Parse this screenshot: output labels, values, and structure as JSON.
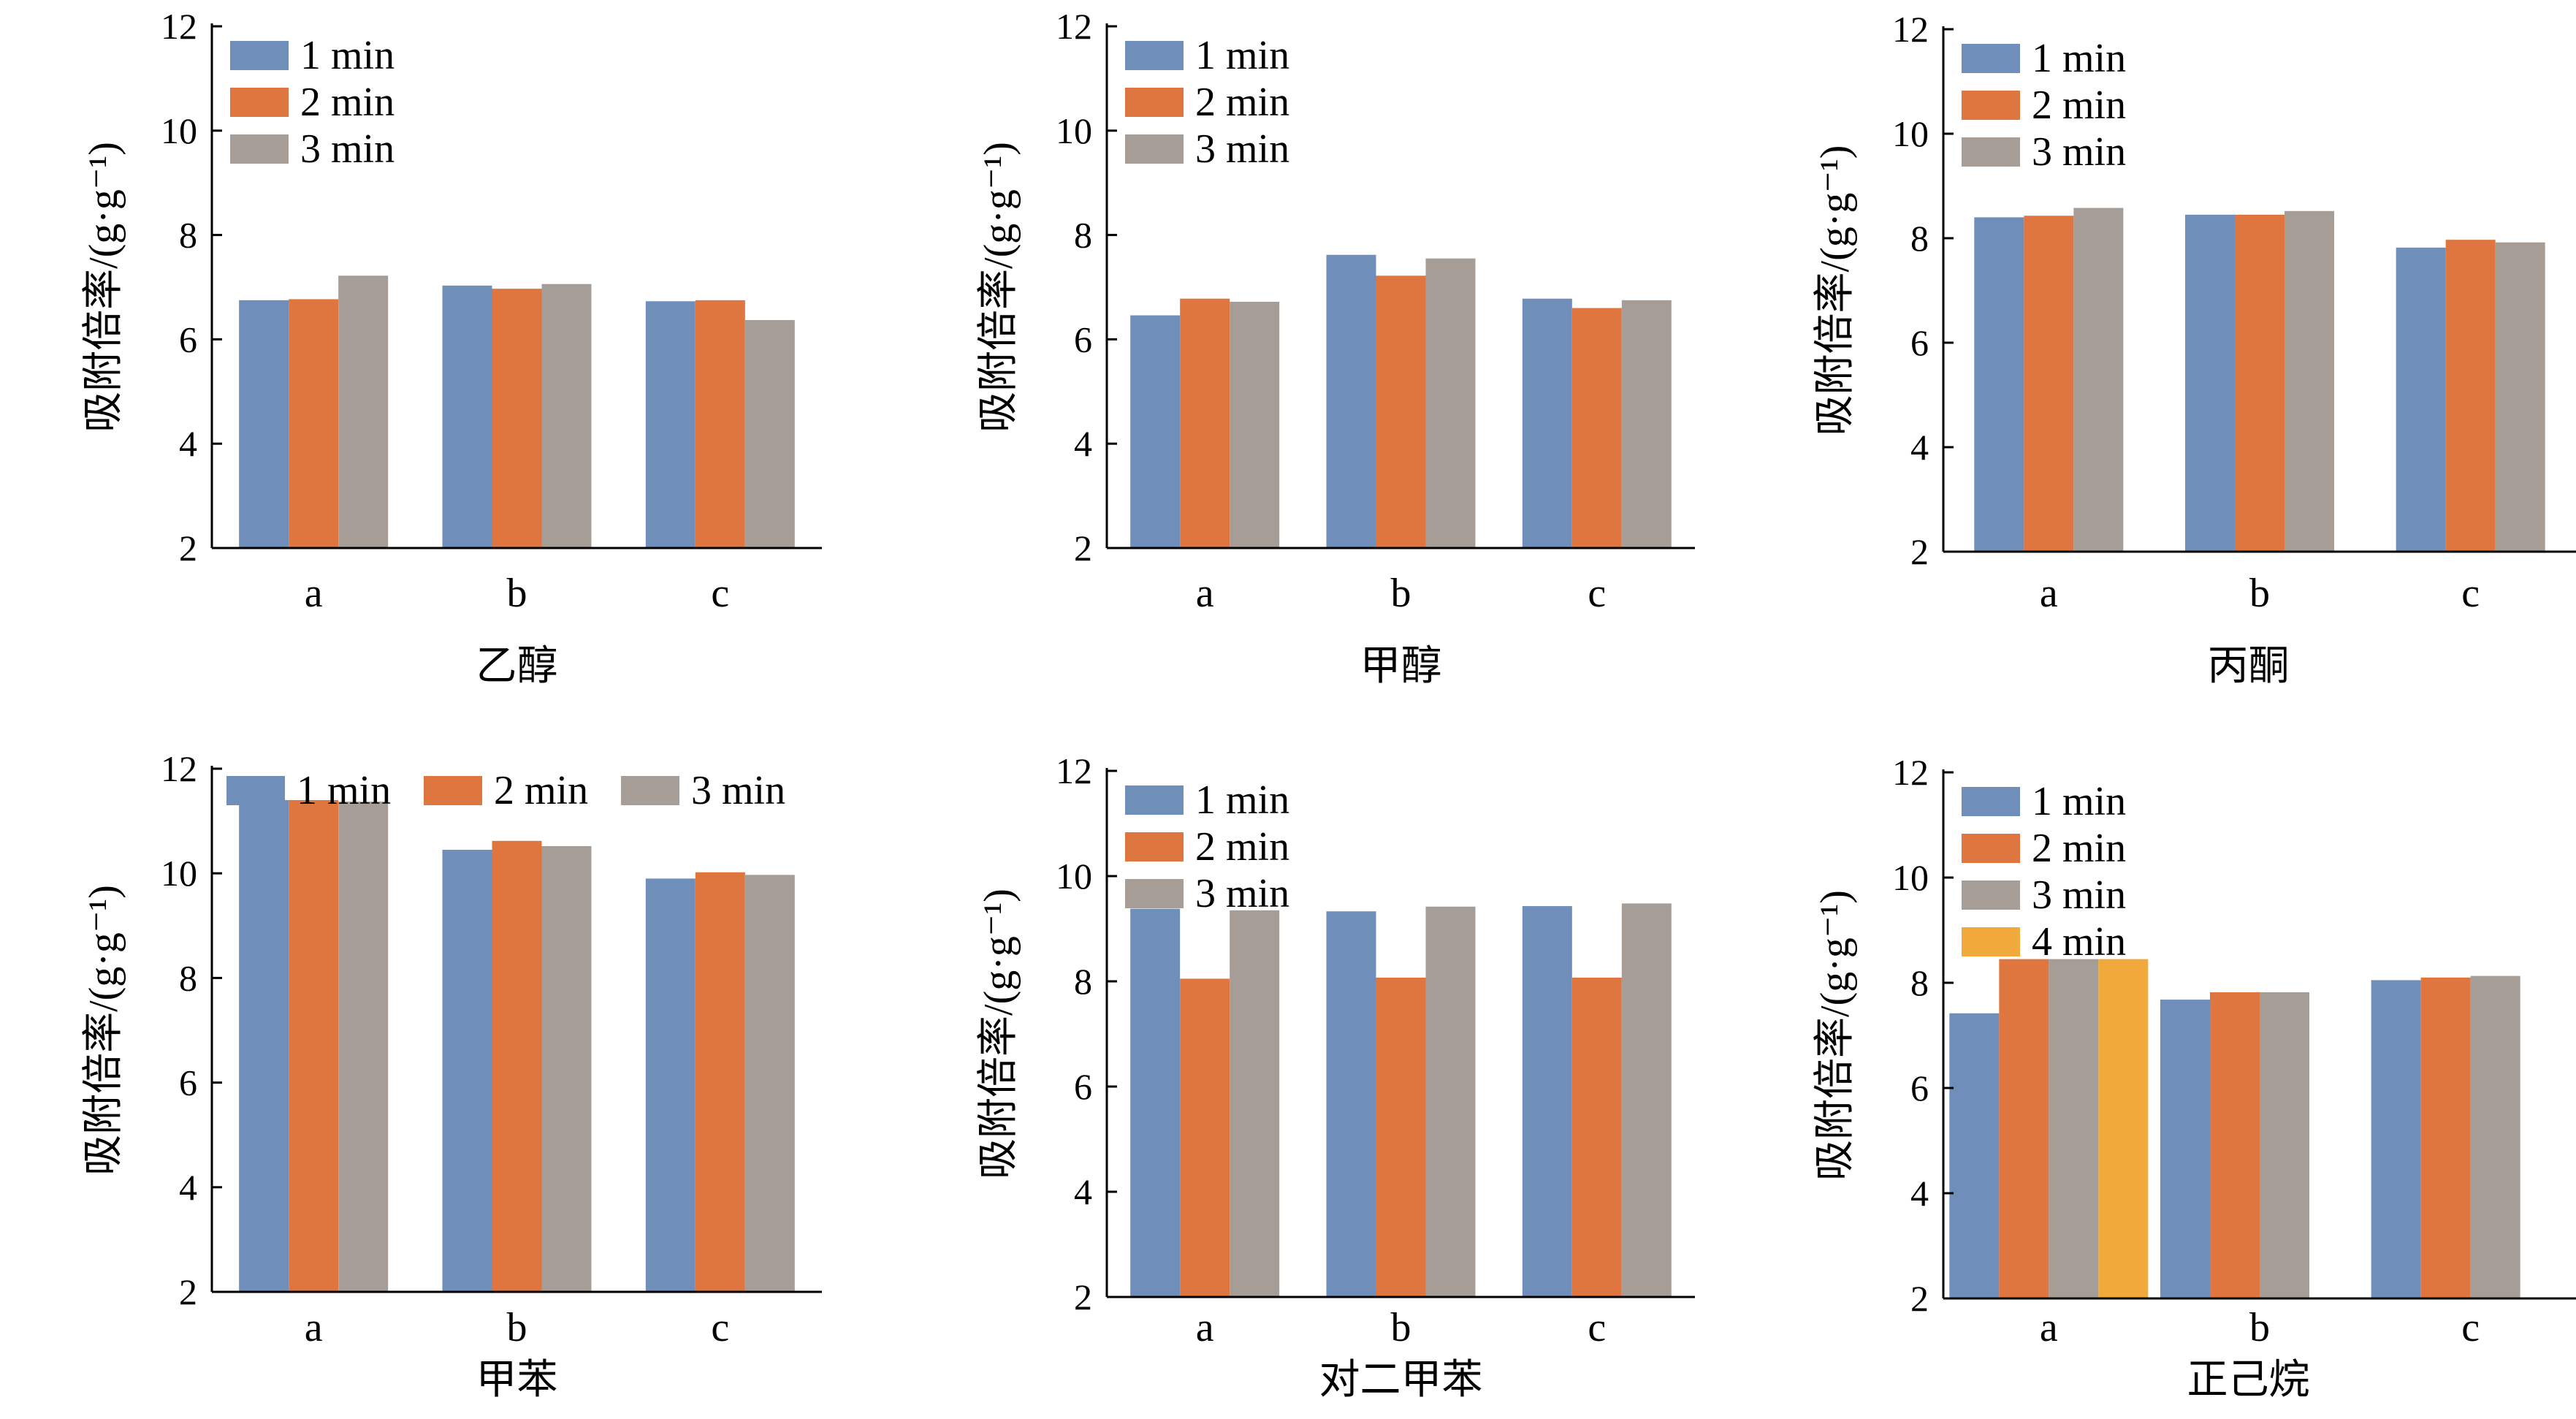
{
  "palette": {
    "1 min": "#6f8fba",
    "2 min": "#e0763f",
    "3 min": "#a69d97",
    "4 min": "#f2a93b"
  },
  "chart_data": [
    {
      "type": "bar",
      "xlabel": "乙醇",
      "ylabel": "吸附倍率/(g·g⁻¹)",
      "categories": [
        "a",
        "b",
        "c"
      ],
      "ylim": [
        2,
        12
      ],
      "yticks": [
        2,
        4,
        6,
        8,
        10,
        12
      ],
      "legend": {
        "placement": "top-left",
        "layout": "vertical"
      },
      "series": [
        {
          "name": "1 min",
          "values": [
            6.75,
            7.03,
            6.73
          ]
        },
        {
          "name": "2 min",
          "values": [
            6.77,
            6.97,
            6.75
          ]
        },
        {
          "name": "3 min",
          "values": [
            7.22,
            7.06,
            6.37
          ]
        }
      ]
    },
    {
      "type": "bar",
      "xlabel": "甲醇",
      "ylabel": "吸附倍率/(g·g⁻¹)",
      "categories": [
        "a",
        "b",
        "c"
      ],
      "ylim": [
        2,
        12
      ],
      "yticks": [
        2,
        4,
        6,
        8,
        10,
        12
      ],
      "legend": {
        "placement": "top-left",
        "layout": "vertical"
      },
      "series": [
        {
          "name": "1 min",
          "values": [
            6.46,
            7.62,
            6.78
          ]
        },
        {
          "name": "2 min",
          "values": [
            6.78,
            7.22,
            6.6
          ]
        },
        {
          "name": "3 min",
          "values": [
            6.72,
            7.55,
            6.75
          ]
        }
      ]
    },
    {
      "type": "bar",
      "xlabel": "丙酮",
      "ylabel": "吸附倍率/(g·g⁻¹)",
      "categories": [
        "a",
        "b",
        "c"
      ],
      "ylim": [
        2,
        12
      ],
      "yticks": [
        2,
        4,
        6,
        8,
        10,
        12
      ],
      "legend": {
        "placement": "top-left",
        "layout": "vertical"
      },
      "series": [
        {
          "name": "1 min",
          "values": [
            8.4,
            8.45,
            7.82
          ]
        },
        {
          "name": "2 min",
          "values": [
            8.43,
            8.45,
            7.97
          ]
        },
        {
          "name": "3 min",
          "values": [
            8.58,
            8.52,
            7.92
          ]
        }
      ]
    },
    {
      "type": "bar",
      "xlabel": "甲苯",
      "ylabel": "吸附倍率/(g·g⁻¹)",
      "categories": [
        "a",
        "b",
        "c"
      ],
      "ylim": [
        2,
        12
      ],
      "yticks": [
        2,
        4,
        6,
        8,
        10,
        12
      ],
      "legend": {
        "placement": "top",
        "layout": "horizontal"
      },
      "series": [
        {
          "name": "1 min",
          "values": [
            11.4,
            10.45,
            9.9
          ]
        },
        {
          "name": "2 min",
          "values": [
            11.4,
            10.62,
            10.02
          ]
        },
        {
          "name": "3 min",
          "values": [
            11.37,
            10.52,
            9.97
          ]
        }
      ]
    },
    {
      "type": "bar",
      "xlabel": "对二甲苯",
      "ylabel": "吸附倍率/(g·g⁻¹)",
      "categories": [
        "a",
        "b",
        "c"
      ],
      "ylim": [
        2,
        12
      ],
      "yticks": [
        2,
        4,
        6,
        8,
        10,
        12
      ],
      "legend": {
        "placement": "top-left",
        "layout": "vertical"
      },
      "series": [
        {
          "name": "1 min",
          "values": [
            9.38,
            9.33,
            9.43
          ]
        },
        {
          "name": "2 min",
          "values": [
            8.05,
            8.07,
            8.07
          ]
        },
        {
          "name": "3 min",
          "values": [
            9.35,
            9.42,
            9.48
          ]
        }
      ]
    },
    {
      "type": "bar",
      "xlabel": "正己烷",
      "ylabel": "吸附倍率/(g·g⁻¹)",
      "categories": [
        "a",
        "b",
        "c"
      ],
      "ylim": [
        2,
        12
      ],
      "yticks": [
        2,
        4,
        6,
        8,
        10,
        12
      ],
      "legend": {
        "placement": "top-left",
        "layout": "vertical"
      },
      "series": [
        {
          "name": "1 min",
          "values": [
            7.42,
            7.68,
            8.05
          ]
        },
        {
          "name": "2 min",
          "values": [
            8.45,
            7.82,
            8.1
          ]
        },
        {
          "name": "3 min",
          "values": [
            8.45,
            7.82,
            8.13
          ]
        },
        {
          "name": "4 min",
          "values": [
            8.45,
            null,
            null
          ]
        }
      ]
    }
  ]
}
